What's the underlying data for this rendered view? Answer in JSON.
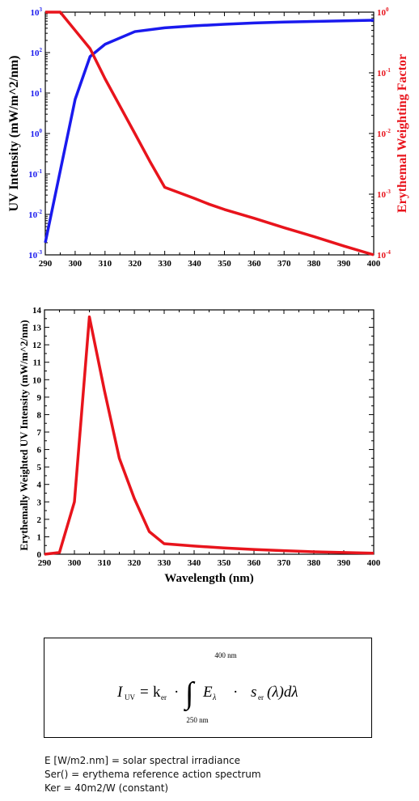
{
  "chart_data": [
    {
      "type": "line",
      "xlabel": "",
      "ylabel": "UV Intensity (mW/m^2/nm)",
      "y2label": "Erythemal Weighting Factor",
      "xlim": [
        290,
        400
      ],
      "ylim": [
        0.001,
        1000
      ],
      "y2lim": [
        0.0001,
        1
      ],
      "yscale": "log",
      "y2scale": "log",
      "x_ticks": [
        "290",
        "300",
        "310",
        "320",
        "330",
        "340",
        "350",
        "360",
        "370",
        "380",
        "390",
        "400"
      ],
      "y_ticks": [
        {
          "base": "10",
          "exp": "-3"
        },
        {
          "base": "10",
          "exp": "-2"
        },
        {
          "base": "10",
          "exp": "-1"
        },
        {
          "base": "10",
          "exp": "0"
        },
        {
          "base": "10",
          "exp": "1"
        },
        {
          "base": "10",
          "exp": "2"
        },
        {
          "base": "10",
          "exp": "3"
        }
      ],
      "y2_ticks": [
        {
          "base": "10",
          "exp": "-4"
        },
        {
          "base": "10",
          "exp": "-3"
        },
        {
          "base": "10",
          "exp": "-2"
        },
        {
          "base": "10",
          "exp": "-1"
        },
        {
          "base": "10",
          "exp": "0"
        }
      ],
      "grid": false,
      "series": [
        {
          "axis": "left",
          "color": "#1a1aee",
          "x": [
            290,
            300,
            305,
            310,
            320,
            330,
            340,
            350,
            360,
            370,
            380,
            390,
            400
          ],
          "y": [
            0.002,
            7,
            80,
            160,
            330,
            410,
            460,
            500,
            540,
            570,
            590,
            610,
            630
          ]
        },
        {
          "axis": "right",
          "color": "#e8141c",
          "x": [
            290,
            295,
            300,
            305,
            310,
            320,
            325,
            330,
            340,
            345,
            350,
            360,
            370,
            380,
            390,
            400
          ],
          "y": [
            1,
            1,
            0.5,
            0.25,
            0.08,
            0.01,
            0.0035,
            0.0013,
            0.00085,
            0.00068,
            0.00056,
            0.0004,
            0.00028,
            0.0002,
            0.00014,
            0.0001
          ]
        }
      ]
    },
    {
      "type": "line",
      "xlabel": "Wavelength (nm)",
      "ylabel": "Erythemally Weighted UV Intensity (mW/m^2/nm)",
      "xlim": [
        290,
        400
      ],
      "ylim": [
        0,
        14
      ],
      "x_ticks": [
        "290",
        "300",
        "310",
        "320",
        "330",
        "340",
        "350",
        "360",
        "370",
        "380",
        "390",
        "400"
      ],
      "y_ticks": [
        "0",
        "1",
        "2",
        "3",
        "4",
        "5",
        "6",
        "7",
        "8",
        "9",
        "10",
        "11",
        "12",
        "13",
        "14"
      ],
      "grid": false,
      "series": [
        {
          "color": "#e8141c",
          "x": [
            290,
            295,
            300,
            305,
            310,
            315,
            320,
            325,
            330,
            340,
            350,
            360,
            370,
            380,
            390,
            400
          ],
          "y": [
            0,
            0.1,
            3,
            13.6,
            9.4,
            5.5,
            3.2,
            1.3,
            0.6,
            0.47,
            0.36,
            0.27,
            0.2,
            0.14,
            0.1,
            0.06
          ]
        }
      ]
    }
  ],
  "formula": {
    "lhs": "I",
    "lhs_sub": "UV",
    "equals": "=",
    "k": "k",
    "k_sub": "er",
    "dot": "·",
    "integral": "∫",
    "upper_limit": "400 nm",
    "lower_limit": "250 nm",
    "e": "E",
    "e_sub": "λ",
    "s": "s",
    "s_sub": "er",
    "s_arg": "(λ)dλ"
  },
  "notes": [
    "E [W/m2.nm] = solar spectral irradiance",
    "Ser() = erythema reference action spectrum",
    "Ker = 40m2/W (constant)"
  ]
}
